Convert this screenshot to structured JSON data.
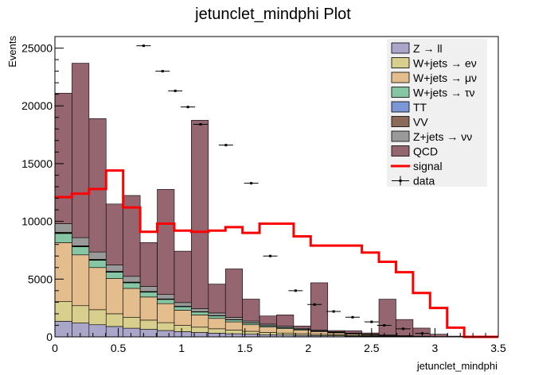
{
  "chart_data": {
    "type": "stacked-histogram",
    "title": "jetunclet_mindphi Plot",
    "xlabel": "jetunclet_mindphi",
    "ylabel": "Events",
    "xlim": [
      0,
      3.5
    ],
    "ylim": [
      0,
      26000
    ],
    "x_ticks": [
      0,
      0.5,
      1,
      1.5,
      2,
      2.5,
      3,
      3.5
    ],
    "x_tick_labels": [
      "0",
      "0.5",
      "1",
      "1.5",
      "2",
      "2.5",
      "3",
      "3.5"
    ],
    "y_ticks": [
      0,
      5000,
      10000,
      15000,
      20000,
      25000
    ],
    "y_tick_labels": [
      "0",
      "5000",
      "10000",
      "15000",
      "20000",
      "25000"
    ],
    "bin_edges": [
      0,
      0.1346,
      0.2692,
      0.4038,
      0.5385,
      0.6731,
      0.8077,
      0.9423,
      1.0769,
      1.2115,
      1.3462,
      1.4808,
      1.6154,
      1.75,
      1.8846,
      2.0192,
      2.1538,
      2.2885,
      2.4231,
      2.5577,
      2.6923,
      2.8269,
      2.9615,
      3.0962,
      3.2308,
      3.3654,
      3.5
    ],
    "series": [
      {
        "name": "Z → ll",
        "color": "#a9a6c9",
        "values": [
          1350,
          1200,
          1050,
          900,
          750,
          650,
          550,
          450,
          380,
          320,
          270,
          230,
          190,
          160,
          130,
          110,
          90,
          70,
          55,
          40,
          30,
          20,
          10,
          5,
          2,
          0
        ]
      },
      {
        "name": "W+jets → eν",
        "color": "#d8cf8e",
        "values": [
          1700,
          1500,
          1300,
          1100,
          950,
          800,
          680,
          560,
          460,
          380,
          310,
          250,
          200,
          170,
          140,
          110,
          85,
          65,
          50,
          35,
          22,
          12,
          6,
          2,
          0,
          0
        ]
      },
      {
        "name": "W+jets → μν",
        "color": "#e4bd8e",
        "values": [
          5100,
          4400,
          3650,
          3050,
          2500,
          2000,
          1650,
          1300,
          1060,
          900,
          720,
          570,
          460,
          380,
          300,
          230,
          170,
          120,
          80,
          50,
          30,
          15,
          8,
          3,
          0,
          0
        ]
      },
      {
        "name": "W+jets → τν",
        "color": "#87c6a4",
        "values": [
          800,
          700,
          630,
          550,
          480,
          420,
          360,
          300,
          250,
          210,
          170,
          140,
          110,
          90,
          70,
          55,
          40,
          30,
          22,
          15,
          8,
          5,
          2,
          1,
          0,
          0
        ]
      },
      {
        "name": "TT",
        "color": "#7b97d6",
        "values": [
          40,
          35,
          30,
          25,
          22,
          20,
          18,
          15,
          12,
          10,
          8,
          7,
          6,
          5,
          4,
          3,
          2,
          2,
          1,
          1,
          0,
          0,
          0,
          0,
          0,
          0
        ]
      },
      {
        "name": "VV",
        "color": "#8b6a5a",
        "values": [
          60,
          55,
          50,
          45,
          40,
          35,
          30,
          25,
          20,
          18,
          15,
          12,
          10,
          8,
          6,
          5,
          4,
          3,
          2,
          1,
          1,
          0,
          0,
          0,
          0,
          0
        ]
      },
      {
        "name": "Z+jets → νν",
        "color": "#999999",
        "values": [
          750,
          700,
          640,
          560,
          500,
          440,
          380,
          320,
          270,
          230,
          190,
          160,
          130,
          110,
          90,
          70,
          55,
          40,
          30,
          20,
          12,
          8,
          4,
          2,
          0,
          0
        ]
      },
      {
        "name": "QCD",
        "color": "#956570",
        "values": [
          11300,
          15100,
          11550,
          5270,
          7000,
          3800,
          9100,
          4450,
          16300,
          2500,
          4200,
          1900,
          700,
          980,
          200,
          4100,
          100,
          200,
          100,
          3100,
          1400,
          700,
          200,
          50,
          20,
          0
        ]
      }
    ],
    "signal": {
      "name": "signal",
      "color": "#ff0000",
      "values": [
        12100,
        12400,
        12800,
        14400,
        11200,
        9100,
        9800,
        9200,
        9100,
        9200,
        9500,
        9000,
        9800,
        9800,
        8700,
        7900,
        7900,
        7900,
        7300,
        6500,
        5600,
        3800,
        2500,
        800,
        0,
        0
      ]
    },
    "data": {
      "name": "data",
      "points": [
        {
          "x": 0.7,
          "y": 25200
        },
        {
          "x": 0.85,
          "y": 23000
        },
        {
          "x": 0.95,
          "y": 21300
        },
        {
          "x": 1.05,
          "y": 19900
        },
        {
          "x": 1.15,
          "y": 18400
        },
        {
          "x": 1.35,
          "y": 16600
        },
        {
          "x": 1.55,
          "y": 13300
        },
        {
          "x": 1.7,
          "y": 7000
        },
        {
          "x": 1.9,
          "y": 4000
        },
        {
          "x": 2.05,
          "y": 2800
        },
        {
          "x": 2.2,
          "y": 2200
        },
        {
          "x": 2.35,
          "y": 1700
        },
        {
          "x": 2.5,
          "y": 1300
        },
        {
          "x": 2.6,
          "y": 1000
        },
        {
          "x": 2.75,
          "y": 700
        },
        {
          "x": 2.9,
          "y": 300
        }
      ]
    },
    "legend": [
      {
        "label": "Z → ll",
        "kind": "box",
        "color": "#a9a6c9"
      },
      {
        "label": "W+jets → eν",
        "kind": "box",
        "color": "#d8cf8e"
      },
      {
        "label": "W+jets → μν",
        "kind": "box",
        "color": "#e4bd8e"
      },
      {
        "label": "W+jets → τν",
        "kind": "box",
        "color": "#87c6a4"
      },
      {
        "label": "TT",
        "kind": "box",
        "color": "#7b97d6"
      },
      {
        "label": "VV",
        "kind": "box",
        "color": "#8b6a5a"
      },
      {
        "label": "Z+jets → νν",
        "kind": "box",
        "color": "#999999"
      },
      {
        "label": "QCD",
        "kind": "box",
        "color": "#956570"
      },
      {
        "label": "signal",
        "kind": "line",
        "color": "#ff0000"
      },
      {
        "label": "data",
        "kind": "marker",
        "color": "#000000"
      }
    ],
    "legend_position": "top-right"
  }
}
